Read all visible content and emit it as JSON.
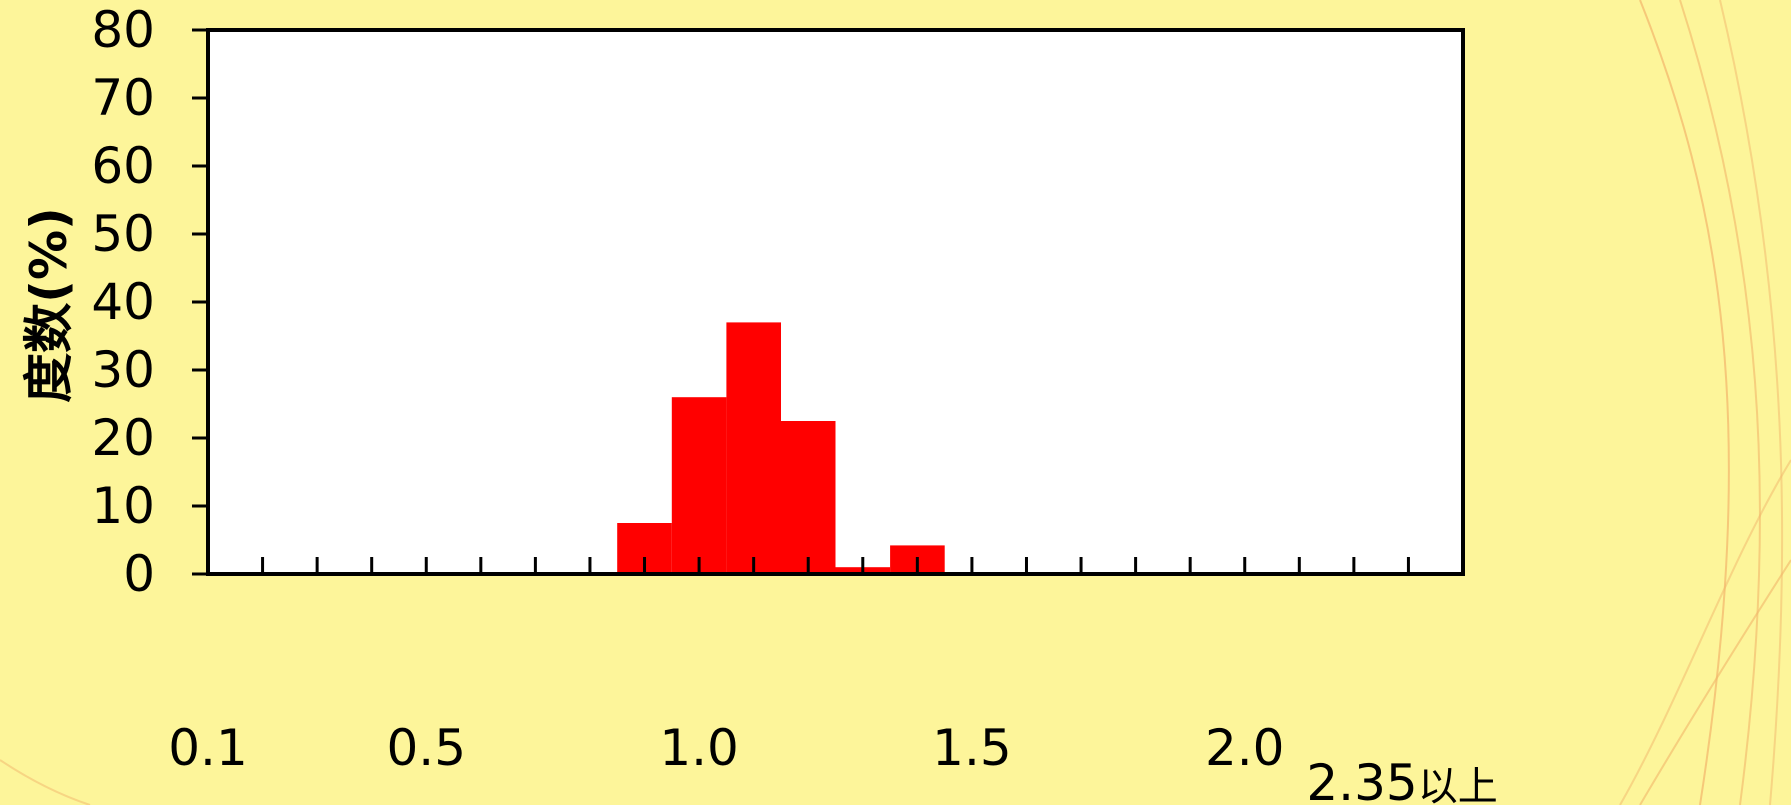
{
  "colors": {
    "background": "#fdf59a",
    "plot_area": "#ffffff",
    "bar": "#ff0000",
    "decor_line": "#f2b56b"
  },
  "chart_data": {
    "type": "bar",
    "title": "",
    "xlabel": "",
    "ylabel": "度数(%)",
    "ylim": [
      0,
      80
    ],
    "yticks": [
      0,
      10,
      20,
      30,
      40,
      50,
      60,
      70,
      80
    ],
    "x_range": [
      0.1,
      2.4
    ],
    "x_minor_tick_step": 0.1,
    "x_tick_labels": [
      {
        "x": 0.1,
        "label": "0.1"
      },
      {
        "x": 0.5,
        "label": "0.5"
      },
      {
        "x": 1.0,
        "label": "1.0"
      },
      {
        "x": 1.5,
        "label": "1.5"
      },
      {
        "x": 2.0,
        "label": "2.0"
      },
      {
        "x": 2.35,
        "label": "2.35以上"
      }
    ],
    "bin_width": 0.1,
    "bins": [
      {
        "x0": 0.85,
        "x1": 0.95,
        "value": 7.5
      },
      {
        "x0": 0.95,
        "x1": 1.05,
        "value": 26
      },
      {
        "x0": 1.05,
        "x1": 1.15,
        "value": 37
      },
      {
        "x0": 1.15,
        "x1": 1.25,
        "value": 22.5
      },
      {
        "x0": 1.25,
        "x1": 1.35,
        "value": 1
      },
      {
        "x0": 1.35,
        "x1": 1.45,
        "value": 4.2
      }
    ],
    "grid": false,
    "legend": "none"
  }
}
